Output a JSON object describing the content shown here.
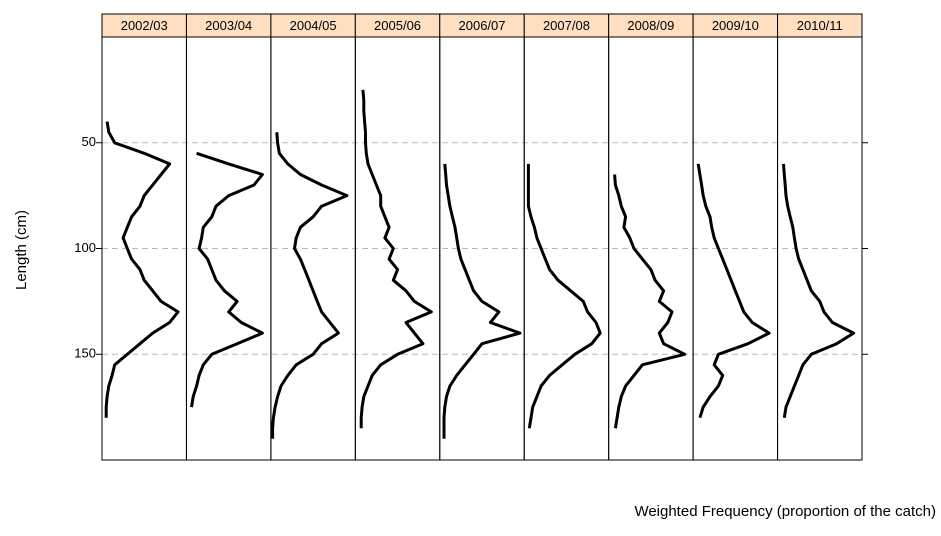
{
  "chart_data": {
    "type": "line",
    "x_label": "Weighted Frequency (proportion of the catch)",
    "y_label": "Length (cm)",
    "ylim": [
      0,
      200
    ],
    "yticks": [
      50,
      100,
      150
    ],
    "y_reversed": true,
    "xlim": [
      0,
      0.1
    ],
    "grid": true,
    "strip_color": "#ffdfc0",
    "line_color": "#000000",
    "series": [
      {
        "name": "2002/03",
        "lengths": [
          40,
          45,
          50,
          55,
          60,
          65,
          70,
          75,
          80,
          85,
          90,
          95,
          100,
          105,
          110,
          115,
          120,
          125,
          130,
          135,
          140,
          145,
          150,
          155,
          160,
          165,
          170,
          175,
          180
        ],
        "values": [
          0.006,
          0.008,
          0.015,
          0.05,
          0.08,
          0.07,
          0.06,
          0.05,
          0.045,
          0.035,
          0.03,
          0.025,
          0.03,
          0.035,
          0.045,
          0.05,
          0.06,
          0.07,
          0.09,
          0.08,
          0.06,
          0.045,
          0.03,
          0.015,
          0.012,
          0.008,
          0.006,
          0.005,
          0.005
        ]
      },
      {
        "name": "2003/04",
        "lengths": [
          55,
          60,
          65,
          70,
          75,
          80,
          85,
          90,
          95,
          100,
          105,
          110,
          115,
          120,
          125,
          130,
          135,
          140,
          145,
          150,
          155,
          160,
          165,
          170,
          175
        ],
        "values": [
          0.012,
          0.05,
          0.09,
          0.08,
          0.05,
          0.035,
          0.03,
          0.02,
          0.018,
          0.015,
          0.025,
          0.03,
          0.035,
          0.045,
          0.06,
          0.05,
          0.065,
          0.09,
          0.06,
          0.03,
          0.02,
          0.015,
          0.012,
          0.008,
          0.006
        ]
      },
      {
        "name": "2004/05",
        "lengths": [
          45,
          50,
          55,
          60,
          65,
          70,
          75,
          80,
          85,
          90,
          95,
          100,
          105,
          110,
          115,
          120,
          125,
          130,
          135,
          140,
          145,
          150,
          155,
          160,
          165,
          170,
          175,
          180,
          185,
          190
        ],
        "values": [
          0.007,
          0.008,
          0.01,
          0.02,
          0.035,
          0.06,
          0.09,
          0.06,
          0.05,
          0.035,
          0.03,
          0.028,
          0.035,
          0.04,
          0.045,
          0.05,
          0.055,
          0.06,
          0.07,
          0.08,
          0.06,
          0.05,
          0.03,
          0.02,
          0.012,
          0.008,
          0.005,
          0.003,
          0.002,
          0.002
        ]
      },
      {
        "name": "2005/06",
        "lengths": [
          25,
          30,
          35,
          40,
          45,
          50,
          55,
          60,
          65,
          70,
          75,
          80,
          85,
          90,
          95,
          100,
          105,
          110,
          115,
          120,
          125,
          130,
          135,
          140,
          145,
          150,
          155,
          160,
          165,
          170,
          175,
          180,
          185
        ],
        "values": [
          0.009,
          0.01,
          0.01,
          0.011,
          0.012,
          0.012,
          0.013,
          0.015,
          0.02,
          0.025,
          0.03,
          0.03,
          0.035,
          0.04,
          0.035,
          0.045,
          0.04,
          0.05,
          0.045,
          0.06,
          0.07,
          0.09,
          0.06,
          0.07,
          0.08,
          0.05,
          0.03,
          0.02,
          0.015,
          0.01,
          0.008,
          0.007,
          0.007
        ]
      },
      {
        "name": "2006/07",
        "lengths": [
          60,
          65,
          70,
          75,
          80,
          85,
          90,
          95,
          100,
          105,
          110,
          115,
          120,
          125,
          130,
          135,
          140,
          145,
          150,
          155,
          160,
          165,
          170,
          175,
          180,
          185,
          190
        ],
        "values": [
          0.006,
          0.007,
          0.008,
          0.01,
          0.012,
          0.015,
          0.018,
          0.02,
          0.022,
          0.025,
          0.03,
          0.035,
          0.04,
          0.05,
          0.07,
          0.06,
          0.095,
          0.05,
          0.04,
          0.03,
          0.02,
          0.012,
          0.008,
          0.006,
          0.005,
          0.005,
          0.005
        ]
      },
      {
        "name": "2007/08",
        "lengths": [
          60,
          65,
          70,
          75,
          80,
          85,
          90,
          95,
          100,
          105,
          110,
          115,
          120,
          125,
          130,
          135,
          140,
          145,
          150,
          155,
          160,
          165,
          170,
          175,
          180,
          185
        ],
        "values": [
          0.005,
          0.005,
          0.005,
          0.005,
          0.005,
          0.008,
          0.012,
          0.015,
          0.02,
          0.025,
          0.03,
          0.04,
          0.055,
          0.07,
          0.075,
          0.085,
          0.09,
          0.08,
          0.06,
          0.045,
          0.03,
          0.02,
          0.015,
          0.01,
          0.008,
          0.006
        ]
      },
      {
        "name": "2008/09",
        "lengths": [
          65,
          70,
          75,
          80,
          85,
          90,
          95,
          100,
          105,
          110,
          115,
          120,
          125,
          130,
          135,
          140,
          145,
          150,
          155,
          160,
          165,
          170,
          175,
          180,
          185
        ],
        "values": [
          0.007,
          0.008,
          0.012,
          0.015,
          0.02,
          0.018,
          0.025,
          0.03,
          0.04,
          0.05,
          0.055,
          0.065,
          0.06,
          0.075,
          0.07,
          0.06,
          0.065,
          0.09,
          0.04,
          0.03,
          0.02,
          0.015,
          0.012,
          0.01,
          0.008
        ]
      },
      {
        "name": "2009/10",
        "lengths": [
          60,
          65,
          70,
          75,
          80,
          85,
          90,
          95,
          100,
          105,
          110,
          115,
          120,
          125,
          130,
          135,
          140,
          145,
          150,
          155,
          160,
          165,
          170,
          175,
          180
        ],
        "values": [
          0.006,
          0.008,
          0.01,
          0.012,
          0.015,
          0.02,
          0.022,
          0.025,
          0.03,
          0.035,
          0.04,
          0.045,
          0.05,
          0.055,
          0.06,
          0.07,
          0.09,
          0.065,
          0.03,
          0.025,
          0.035,
          0.03,
          0.02,
          0.012,
          0.008
        ]
      },
      {
        "name": "2010/11",
        "lengths": [
          60,
          65,
          70,
          75,
          80,
          85,
          90,
          95,
          100,
          105,
          110,
          115,
          120,
          125,
          130,
          135,
          140,
          145,
          150,
          155,
          160,
          165,
          170,
          175,
          180
        ],
        "values": [
          0.007,
          0.008,
          0.009,
          0.01,
          0.012,
          0.015,
          0.018,
          0.02,
          0.022,
          0.025,
          0.03,
          0.035,
          0.04,
          0.05,
          0.055,
          0.065,
          0.09,
          0.07,
          0.04,
          0.03,
          0.025,
          0.02,
          0.015,
          0.01,
          0.008
        ]
      }
    ]
  }
}
